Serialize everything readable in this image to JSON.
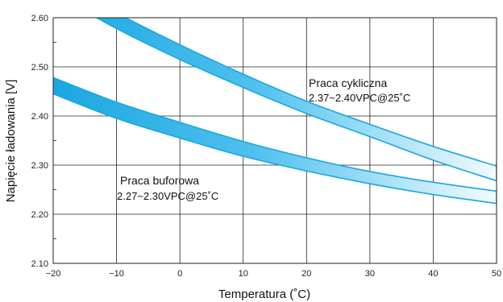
{
  "chart_data": {
    "type": "area",
    "title": "",
    "xlabel": "Temperatura (˚C)",
    "ylabel": "Napięcie ładowania [V]",
    "xlim": [
      -20,
      50
    ],
    "ylim": [
      2.1,
      2.6
    ],
    "x_ticks": [
      "−20",
      "−10",
      "0",
      "10",
      "20",
      "30",
      "40",
      "50"
    ],
    "y_ticks": [
      "2.10",
      "2.20",
      "2.30",
      "2.40",
      "2.50",
      "2.60"
    ],
    "grid": true,
    "band_color": "#1aa7e0",
    "series": [
      {
        "name": "Praca cykliczna",
        "sub": "2.37~2.40VPC@25˚C",
        "x": [
          -20,
          -10,
          0,
          10,
          20,
          30,
          40,
          50
        ],
        "lower": [
          2.65,
          2.578,
          2.515,
          2.458,
          2.405,
          2.358,
          2.31,
          2.268
        ],
        "upper": [
          2.685,
          2.61,
          2.545,
          2.485,
          2.43,
          2.383,
          2.338,
          2.298
        ]
      },
      {
        "name": "Praca buforowa",
        "sub": "2.27~2.30VPC@25˚C",
        "x": [
          -20,
          -10,
          0,
          10,
          20,
          30,
          40,
          50
        ],
        "lower": [
          2.445,
          2.395,
          2.355,
          2.318,
          2.288,
          2.262,
          2.24,
          2.222
        ],
        "upper": [
          2.478,
          2.428,
          2.387,
          2.348,
          2.315,
          2.287,
          2.265,
          2.247
        ]
      }
    ]
  }
}
